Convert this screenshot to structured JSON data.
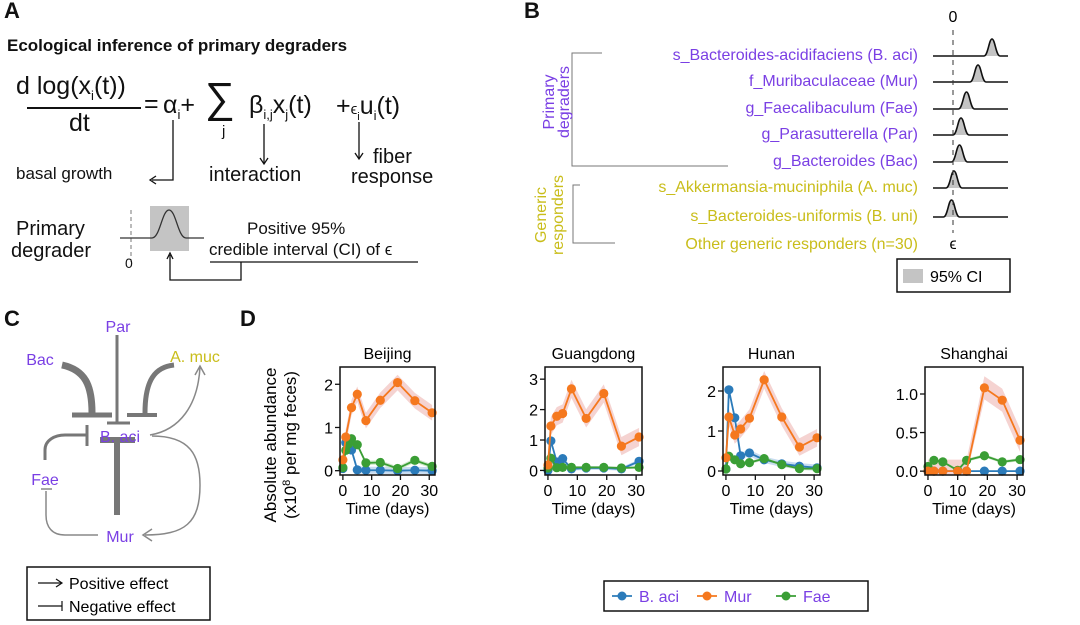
{
  "panels": {
    "a": {
      "letter": "A",
      "title": "Ecological inference of primary degraders",
      "equation": {
        "numerator": "d log(x",
        "numerator_sub": "i",
        "numerator_end": "(t))",
        "denominator": "dt",
        "equals": "=",
        "alpha": "α",
        "alpha_sub": "i",
        "plus1": "+",
        "sigma": "∑",
        "sigma_sub": "j",
        "beta": "β",
        "beta_sub": "i,j",
        "xj": "x",
        "xj_sub": "j",
        "xj_end": "(t)",
        "plus2": "+",
        "eps": "ϵ",
        "eps_sub": "i",
        "u": "u",
        "u_sub": "i",
        "u_end": "(t)"
      },
      "annotations": {
        "basal": "basal growth",
        "interaction": "interaction",
        "fiber1": "fiber",
        "fiber2": "response"
      },
      "degrader_label_1": "Primary",
      "degrader_label_2": "degrader",
      "zero_label": "0",
      "ci_label_1": "Positive 95%",
      "ci_label_2": "credible interval (CI)",
      "ci_label_3": "of ϵ"
    },
    "b": {
      "letter": "B",
      "group_primary_1": "Primary",
      "group_primary_2": "degraders",
      "group_generic_1": "Generic",
      "group_generic_2": "responders",
      "zero_label": "0",
      "eps_label": "ϵ",
      "legend_label": "95% CI",
      "taxa": [
        {
          "label": "s_Bacteroides-acidifaciens (B. aci)",
          "group": "primary",
          "peak": 0.78
        },
        {
          "label": "f_Muribaculaceae (Mur)",
          "group": "primary",
          "peak": 0.5
        },
        {
          "label": "g_Faecalibaculum (Fae)",
          "group": "primary",
          "peak": 0.27
        },
        {
          "label": "g_Parasutterella (Par)",
          "group": "primary",
          "peak": 0.16
        },
        {
          "label": "g_Bacteroides (Bac)",
          "group": "primary",
          "peak": 0.13
        },
        {
          "label": "s_Akkermansia-muciniphila (A. muc)",
          "group": "generic",
          "peak": 0.02
        },
        {
          "label": "s_Bacteroides-uniformis (B. uni)",
          "group": "generic",
          "peak": -0.03
        },
        {
          "label": "Other generic responders (n=30)",
          "group": "generic",
          "peak": null
        }
      ]
    },
    "c": {
      "letter": "C",
      "nodes": {
        "par": "Par",
        "bac": "Bac",
        "amuc": "A. muc",
        "baci": "B. aci",
        "fae": "Fae",
        "mur": "Mur"
      },
      "legend_positive": "Positive effect",
      "legend_negative": "Negative effect"
    },
    "d": {
      "letter": "D",
      "ylabel_1": "Absolute abundance",
      "ylabel_2_pre": "(x10",
      "ylabel_2_sup": "8",
      "ylabel_2_post": " per mg feces)",
      "legend": [
        {
          "name": "B. aci",
          "color": "#2b7bba"
        },
        {
          "name": "Mur",
          "color": "#f5781e"
        },
        {
          "name": "Fae",
          "color": "#3a9e35"
        }
      ]
    }
  },
  "chart_data": [
    {
      "type": "line",
      "title": "Beijing",
      "xlabel": "Time (days)",
      "ylabel": "Absolute abundance (x10^8 per mg feces)",
      "xlim": [
        -1,
        32
      ],
      "ylim": [
        -0.1,
        2.4
      ],
      "xticks": [
        0,
        10,
        20,
        30
      ],
      "yticks": [
        0,
        1,
        2
      ],
      "ytick_labels": [
        "0",
        "1",
        "2"
      ],
      "series": [
        {
          "name": "B. aci",
          "x": [
            0,
            1,
            3,
            5,
            8,
            13,
            19,
            25,
            31
          ],
          "y": [
            0.05,
            0.65,
            0.48,
            0.02,
            0.01,
            0.01,
            0.0,
            0.01,
            0.0
          ],
          "band": 0.08
        },
        {
          "name": "Mur",
          "x": [
            0,
            1,
            3,
            5,
            8,
            13,
            19,
            25,
            31
          ],
          "y": [
            0.25,
            0.78,
            1.46,
            1.77,
            1.16,
            1.63,
            2.04,
            1.62,
            1.34
          ],
          "band": 0.18
        },
        {
          "name": "Fae",
          "x": [
            0,
            1,
            2,
            3,
            5,
            8,
            13,
            19,
            25,
            31
          ],
          "y": [
            0.07,
            0.47,
            0.62,
            0.74,
            0.6,
            0.18,
            0.19,
            0.05,
            0.24,
            0.1
          ],
          "band": 0.05
        }
      ]
    },
    {
      "type": "line",
      "title": "Guangdong",
      "xlabel": "Time (days)",
      "ylabel": "",
      "xlim": [
        -1,
        32
      ],
      "ylim": [
        -0.15,
        3.4
      ],
      "xticks": [
        0,
        10,
        20,
        30
      ],
      "yticks": [
        0,
        1,
        2,
        3
      ],
      "ytick_labels": [
        "0",
        "1",
        "2",
        "3"
      ],
      "series": [
        {
          "name": "B. aci",
          "x": [
            0,
            1,
            3,
            5,
            8,
            13,
            19,
            25,
            31
          ],
          "y": [
            0.0,
            0.97,
            0.28,
            0.39,
            0.05,
            0.08,
            0.08,
            0.05,
            0.3
          ],
          "band": 0.06
        },
        {
          "name": "Mur",
          "x": [
            0,
            1,
            3,
            5,
            8,
            13,
            19,
            25,
            31
          ],
          "y": [
            0.18,
            1.46,
            1.78,
            1.87,
            2.68,
            1.71,
            2.53,
            0.8,
            1.1
          ],
          "band": 0.3
        },
        {
          "name": "Fae",
          "x": [
            0,
            1,
            3,
            5,
            8,
            13,
            19,
            25,
            31
          ],
          "y": [
            0.08,
            0.4,
            0.09,
            0.1,
            0.1,
            0.1,
            0.1,
            0.08,
            0.1
          ],
          "band": 0.04
        }
      ]
    },
    {
      "type": "line",
      "title": "Hunan",
      "xlabel": "Time (days)",
      "ylabel": "",
      "xlim": [
        -1,
        32
      ],
      "ylim": [
        -0.1,
        2.6
      ],
      "xticks": [
        0,
        10,
        20,
        30
      ],
      "yticks": [
        0,
        1,
        2
      ],
      "ytick_labels": [
        "0",
        "1",
        "2"
      ],
      "series": [
        {
          "name": "B. aci",
          "x": [
            0,
            1,
            3,
            5,
            8,
            13,
            19,
            25,
            31
          ],
          "y": [
            0.05,
            2.03,
            1.33,
            0.38,
            0.45,
            0.28,
            0.18,
            0.12,
            0.08
          ],
          "band": 0.08
        },
        {
          "name": "Mur",
          "x": [
            0,
            1,
            3,
            5,
            8,
            13,
            19,
            25,
            31
          ],
          "y": [
            0.33,
            1.35,
            0.9,
            1.05,
            1.32,
            2.28,
            1.35,
            0.6,
            0.83
          ],
          "band": 0.22
        },
        {
          "name": "Fae",
          "x": [
            0,
            1,
            3,
            5,
            8,
            13,
            19,
            25,
            31
          ],
          "y": [
            0.05,
            0.37,
            0.28,
            0.18,
            0.21,
            0.31,
            0.16,
            0.06,
            0.06
          ],
          "band": 0.04
        }
      ]
    },
    {
      "type": "line",
      "title": "Shanghai",
      "xlabel": "Time (days)",
      "ylabel": "",
      "xlim": [
        -1,
        32
      ],
      "ylim": [
        -0.05,
        1.35
      ],
      "xticks": [
        0,
        10,
        20,
        30
      ],
      "yticks": [
        0.0,
        0.5,
        1.0
      ],
      "ytick_labels": [
        "0.0",
        "0.5",
        "1.0"
      ],
      "series": [
        {
          "name": "B. aci",
          "x": [
            0,
            2,
            5,
            10,
            13,
            19,
            25,
            31
          ],
          "y": [
            0.0,
            0.0,
            0.0,
            0.0,
            0.0,
            0.0,
            0.0,
            0.0
          ],
          "band": 0.01
        },
        {
          "name": "Mur",
          "x": [
            0,
            2,
            5,
            10,
            13,
            19,
            25,
            31
          ],
          "y": [
            0.0,
            0.0,
            0.0,
            0.0,
            0.0,
            1.08,
            0.92,
            0.4
          ],
          "band": 0.15
        },
        {
          "name": "Fae",
          "x": [
            0,
            2,
            5,
            10,
            13,
            19,
            25,
            31
          ],
          "y": [
            0.06,
            0.14,
            0.12,
            0.01,
            0.14,
            0.2,
            0.12,
            0.15
          ],
          "band": 0.02
        }
      ]
    }
  ]
}
